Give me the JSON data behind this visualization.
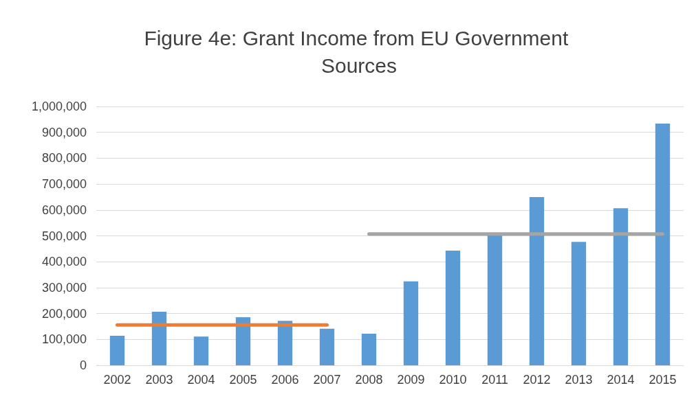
{
  "chart_data": {
    "type": "bar",
    "title": "Figure 4e: Grant Income from EU Government Sources",
    "categories": [
      "2002",
      "2003",
      "2004",
      "2005",
      "2006",
      "2007",
      "2008",
      "2009",
      "2010",
      "2011",
      "2012",
      "2013",
      "2014",
      "2015"
    ],
    "series": [
      {
        "color": "#5b9bd5",
        "values": [
          114000,
          207000,
          111000,
          186000,
          172000,
          141000,
          122000,
          324000,
          443000,
          504000,
          650000,
          477000,
          607000,
          934000
        ]
      },
      {
        "type": "line",
        "color": "#ed7d31",
        "values": [
          156000,
          156000,
          156000,
          156000,
          156000,
          156000,
          null,
          null,
          null,
          null,
          null,
          null,
          null,
          null
        ]
      },
      {
        "type": "line",
        "color": "#a5a5a5",
        "values": [
          null,
          null,
          null,
          null,
          null,
          null,
          507000,
          507000,
          507000,
          507000,
          507000,
          507000,
          507000,
          507000
        ]
      }
    ],
    "ylim": [
      0,
      1000000
    ],
    "yticks": [
      0,
      {
        "value": 100000,
        "label": "100,000"
      },
      {
        "value": 200000,
        "label": "200,000"
      },
      {
        "value": 300000,
        "label": "300,000"
      },
      {
        "value": 400000,
        "label": "400,000"
      },
      {
        "value": 500000,
        "label": "500,000"
      },
      {
        "value": 600000,
        "label": "600,000"
      },
      {
        "value": 700000,
        "label": "700,000"
      },
      {
        "value": 800000,
        "label": "800,000"
      },
      {
        "value": 900000,
        "label": "900,000"
      },
      {
        "value": 1000000,
        "label": "1,000,000"
      }
    ],
    "grid": "y",
    "marker": "none"
  }
}
